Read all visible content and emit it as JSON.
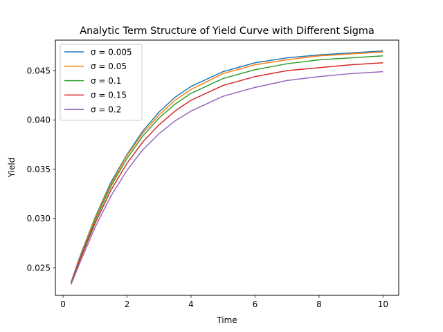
{
  "chart_data": {
    "type": "line",
    "title": "Analytic Term Structure of Yield Curve with Different Sigma",
    "xlabel": "Time",
    "ylabel": "Yield",
    "xlim": [
      -0.24,
      10.49
    ],
    "ylim": [
      0.0222,
      0.0481
    ],
    "xticks": [
      0,
      2,
      4,
      6,
      8,
      10
    ],
    "yticks": [
      0.025,
      0.03,
      0.035,
      0.04,
      0.045
    ],
    "ytick_labels": [
      "0.025",
      "0.030",
      "0.035",
      "0.040",
      "0.045"
    ],
    "grid": false,
    "legend_position": "upper-left",
    "x": [
      0.25,
      0.5,
      1,
      1.5,
      2,
      2.5,
      3,
      3.5,
      4,
      5,
      6,
      7,
      8,
      9,
      10
    ],
    "series": [
      {
        "name": "σ = 0.005",
        "color": "#1f77b4",
        "values": [
          0.0235,
          0.0259,
          0.0301,
          0.0337,
          0.0365,
          0.0389,
          0.0408,
          0.0423,
          0.0434,
          0.0449,
          0.0458,
          0.0463,
          0.0466,
          0.0468,
          0.047
        ]
      },
      {
        "name": "σ = 0.05",
        "color": "#ff7f0e",
        "values": [
          0.0235,
          0.0258,
          0.03,
          0.0335,
          0.0364,
          0.0387,
          0.0405,
          0.042,
          0.0431,
          0.0447,
          0.0456,
          0.0461,
          0.0465,
          0.0467,
          0.0469
        ]
      },
      {
        "name": "σ = 0.1",
        "color": "#2ca02c",
        "values": [
          0.0235,
          0.0257,
          0.0298,
          0.0333,
          0.0361,
          0.0384,
          0.0402,
          0.0416,
          0.0427,
          0.0442,
          0.0451,
          0.0457,
          0.0461,
          0.0463,
          0.0465
        ]
      },
      {
        "name": "σ = 0.15",
        "color": "#d62728",
        "values": [
          0.0234,
          0.0256,
          0.0295,
          0.0329,
          0.0356,
          0.0378,
          0.0395,
          0.0409,
          0.042,
          0.0435,
          0.0444,
          0.045,
          0.0453,
          0.0456,
          0.0458
        ]
      },
      {
        "name": "σ = 0.2",
        "color": "#9467bd",
        "values": [
          0.0233,
          0.0253,
          0.0291,
          0.0323,
          0.0349,
          0.037,
          0.0386,
          0.0399,
          0.0409,
          0.0424,
          0.0433,
          0.044,
          0.0444,
          0.0447,
          0.0449
        ]
      }
    ]
  }
}
